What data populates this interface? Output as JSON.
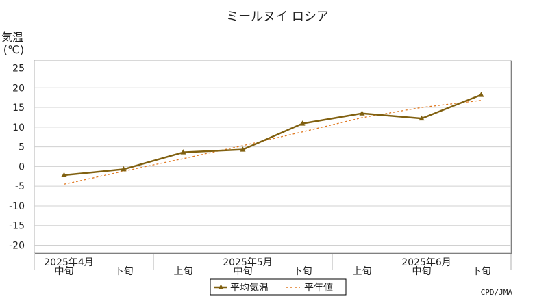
{
  "chart_data": {
    "type": "line",
    "title": "ミールヌイ ロシア",
    "ylabel_line1": "気温",
    "ylabel_line2": "(℃)",
    "ylim": [
      -22,
      27
    ],
    "yticks": [
      25,
      20,
      15,
      10,
      5,
      0,
      -5,
      -10,
      -15,
      -20
    ],
    "grid": true,
    "legend_position": "bottom-center",
    "x": [
      "中旬",
      "下旬",
      "上旬",
      "中旬",
      "下旬",
      "上旬",
      "中旬",
      "下旬"
    ],
    "month_labels": [
      {
        "label": "2025年4月",
        "index": 0
      },
      {
        "label": "2025年5月",
        "index": 3
      },
      {
        "label": "2025年6月",
        "index": 6
      }
    ],
    "series": [
      {
        "name": "平均気温",
        "color": "#806010",
        "style": "solid-triangle",
        "values": [
          -2.2,
          -0.7,
          3.6,
          4.3,
          10.9,
          13.5,
          12.2,
          18.2
        ]
      },
      {
        "name": "平年値",
        "color": "#e07820",
        "style": "dashed",
        "values": [
          -4.5,
          -1.2,
          2.0,
          5.3,
          8.8,
          12.4,
          15.0,
          16.8
        ]
      }
    ],
    "credit": "CPD/JMA"
  }
}
